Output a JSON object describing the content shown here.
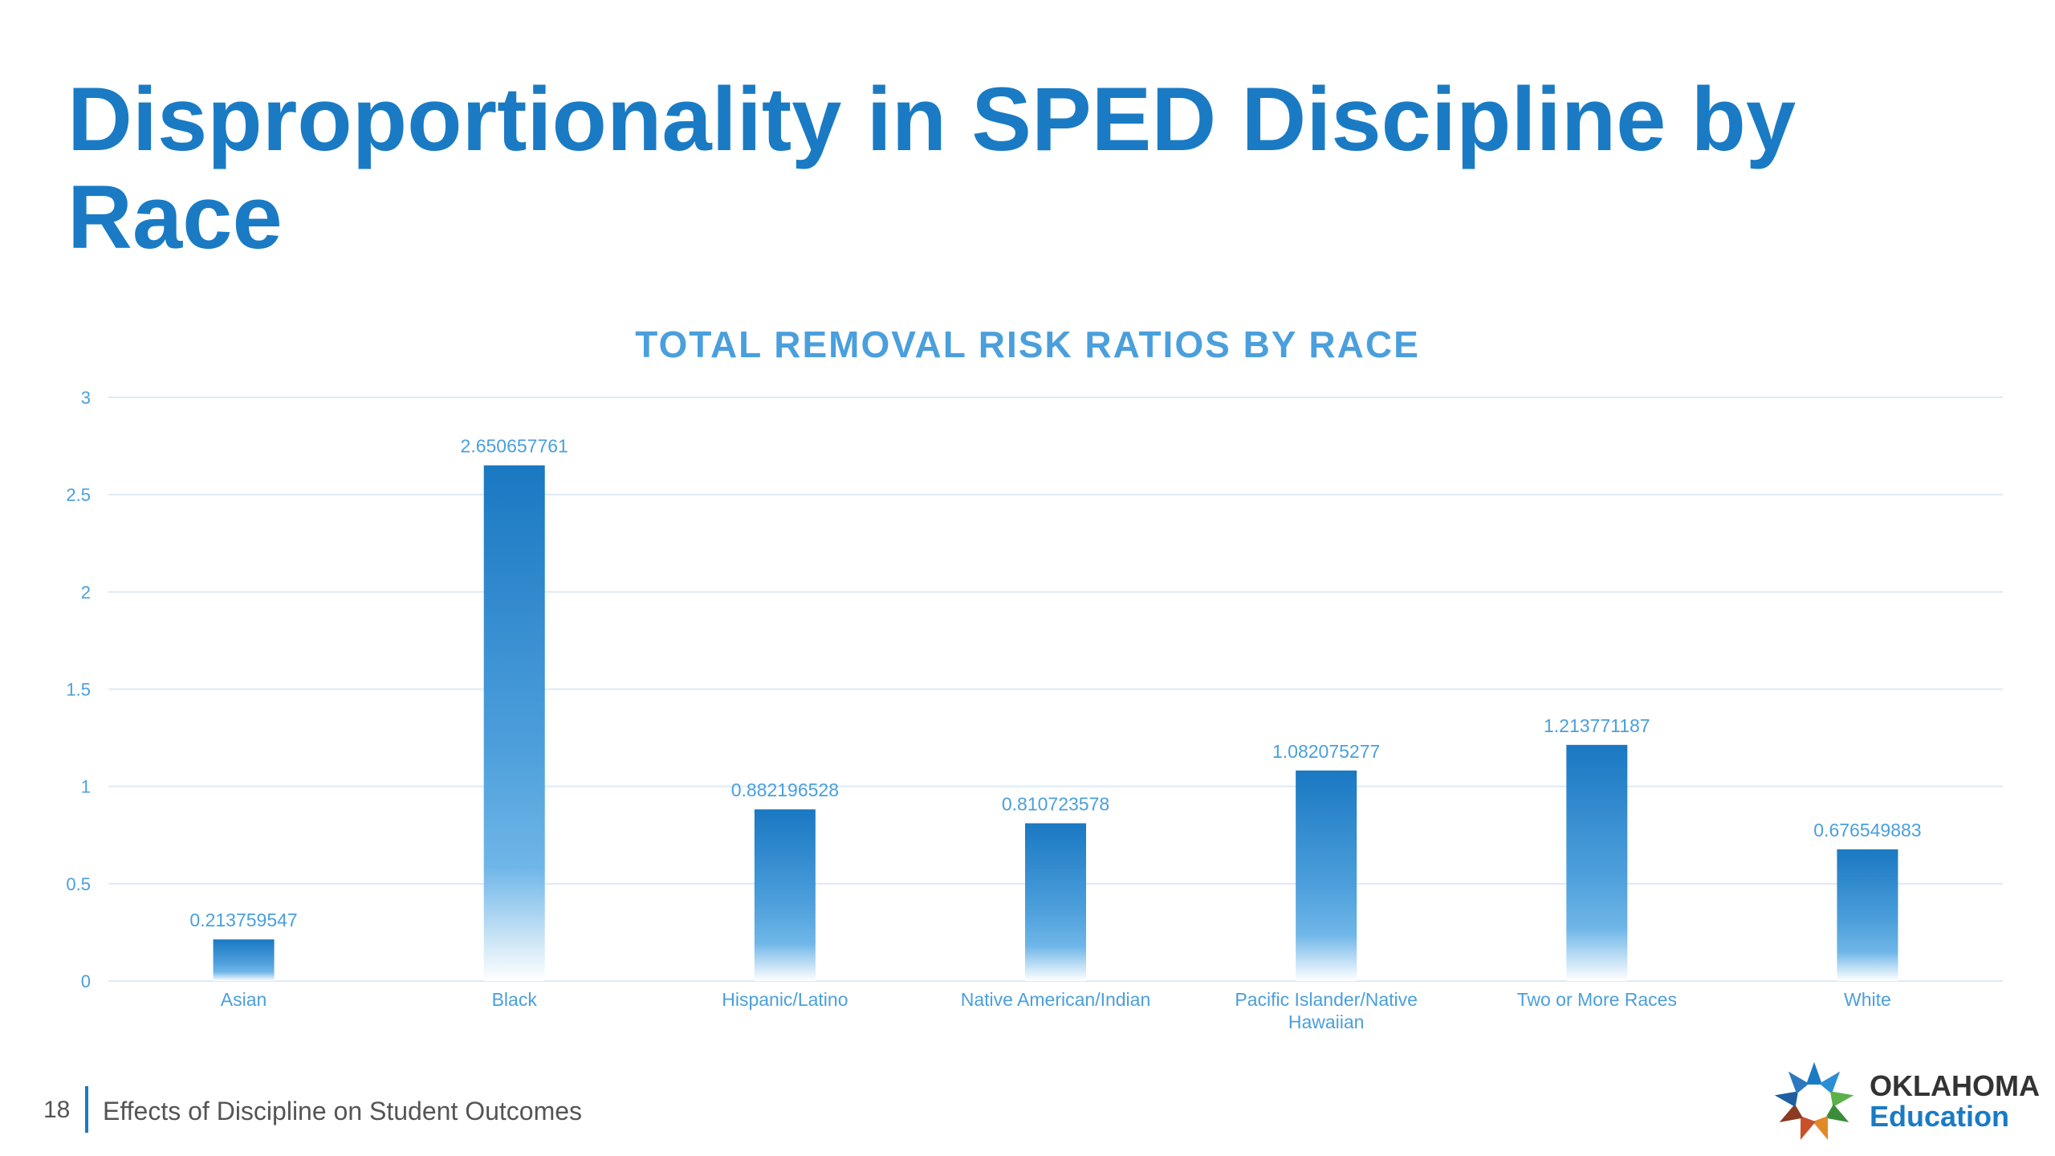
{
  "slide": {
    "title": "Disproportionality in SPED Discipline by Race",
    "page_number": "18",
    "footer_text": "Effects of Discipline on Student Outcomes",
    "logo": {
      "line1": "OKLAHOMA",
      "line2": "Education",
      "icon": "oklahoma-star-logo-icon"
    }
  },
  "colors": {
    "title": "#1a7bc4",
    "chart_title": "#4a9fdc",
    "bar_top": "#1a78c2",
    "bar_mid": "#5aa8e0",
    "labels": "#4a9fdc",
    "gridline": "#ddeaf5"
  },
  "chart_data": {
    "type": "bar",
    "title": "TOTAL REMOVAL RISK RATIOS BY RACE",
    "xlabel": "",
    "ylabel": "",
    "ylim": [
      0,
      3
    ],
    "yticks": [
      "0",
      "0.5",
      "1",
      "1.5",
      "2",
      "2.5",
      "3"
    ],
    "grid": true,
    "legend": "none",
    "categories": [
      [
        "Asian"
      ],
      [
        "Black"
      ],
      [
        "Hispanic/Latino"
      ],
      [
        "Native American/Indian"
      ],
      [
        "Pacific Islander/Native",
        "Hawaiian"
      ],
      [
        "Two or More Races"
      ],
      [
        "White"
      ]
    ],
    "values": [
      0.213759547,
      2.650657761,
      0.882196528,
      0.810723578,
      1.082075277,
      1.213771187,
      0.676549883
    ],
    "value_labels": [
      "0.213759547",
      "2.650657761",
      "0.882196528",
      "0.810723578",
      "1.082075277",
      "1.213771187",
      "0.676549883"
    ]
  }
}
